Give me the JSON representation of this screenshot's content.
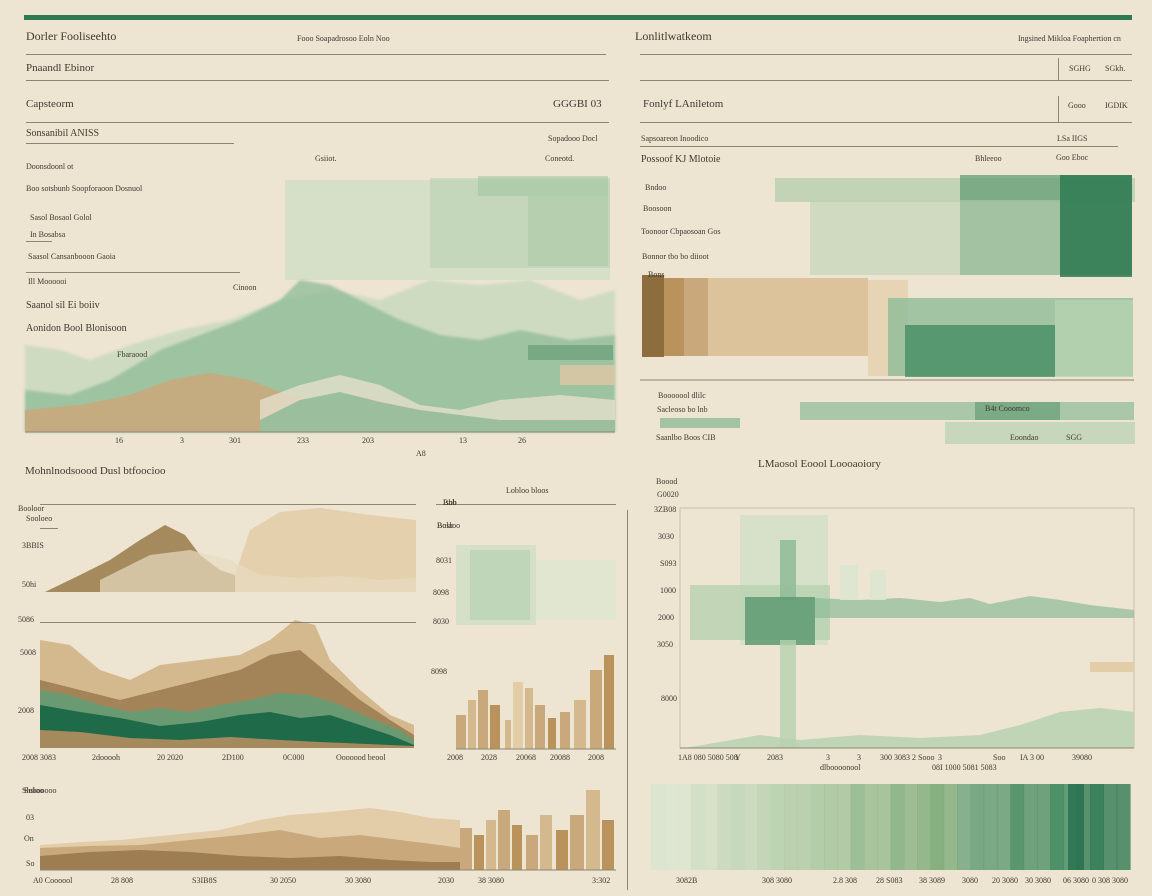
{
  "colors": {
    "background": "#ede4d2",
    "accent_green": "#2f7a52",
    "mid_green": "#7fb08a",
    "pale_green": "#b9d2b2",
    "dark_green": "#1f6a48",
    "tan": "#c8a97b",
    "brown": "#8d6c3e",
    "dark_brown": "#6a5128",
    "ink": "#3e3a2e"
  },
  "left_panel": {
    "title": "Dorler Fooliseehto",
    "title_note": "Fooo Soapadrosoo Eoln Noo",
    "row1": "Pnaandl Ebinor",
    "row2_label": "Capsteorm",
    "row2_value": "GGGBI 03",
    "row3_label": "Sonsanibil ANISS",
    "row3_right": "Sopadooo Docl",
    "col_left": "Gsiiot.",
    "col_right": "Coneotd.",
    "side_labels": [
      "Doonsdoonl ot",
      "Boo sotsbunb Soopforaoon Dosnuol",
      "Sasol Bosaol Golol",
      "In Bosabsa",
      "Saasol Cansanbooon Gaoia",
      "Ill Moooooi",
      "Saanol sil Ei boiiv",
      "Aonidon Bool Blonisoon"
    ],
    "chart_notes": [
      "Cinoon",
      "Fbaraood"
    ]
  },
  "right_panel": {
    "title": "Lonlitlwatkeom",
    "title_note": "Ingsined Mikloa Foaphertion cn",
    "row1_right": [
      "SGHG",
      "SGkh."
    ],
    "row2_label": "Fonlyf LAniletom",
    "row2_right": [
      "Gooo",
      "IGDIK"
    ],
    "row3_label": "Sapsoareon Inoodico",
    "row3_right": "LSa IIGS",
    "row4_label": "Possoof KJ Mlotoie",
    "row4_mid": "Bhleeoo",
    "row4_right": "Goo Eboc",
    "side_labels": [
      "Bndoo",
      "Boosoon",
      "Toonoor Cbpaosoan Gos",
      "Bonnor tbo bo diioot",
      "Bons"
    ],
    "lower_labels": [
      "Booooool dlilc",
      "Sacleoso bo lnb",
      "Saanlbo Boos CIB"
    ],
    "lower_right": [
      "B4t Cooomco",
      "Eoondao",
      "SGG"
    ]
  },
  "bottom_left": {
    "title": "Mohnlnodsoood Dusl btfoocioo",
    "legend_top": [
      "Booloor",
      "Sooloeo"
    ],
    "note": "Sobooooo"
  },
  "bottom_mid": {
    "title": "Lobloo bloos",
    "small_labels": [
      "Bhb",
      "Bolaoo"
    ]
  },
  "bottom_right": {
    "title": "LMaosol Eoool Loooaoiory"
  },
  "chart_data": [
    {
      "type": "area",
      "x_ticks": [
        "16",
        "3",
        "301",
        "233",
        "203",
        "13",
        "26"
      ],
      "xlabel": "A8"
    },
    {
      "type": "bar",
      "y_ticks": [
        "Isob",
        "Bosb",
        "8031",
        "8098",
        "8030",
        "8098"
      ],
      "x_ticks": [
        "2008",
        "2028",
        "20068",
        "20088",
        "2008"
      ]
    },
    {
      "type": "area",
      "y_ticks": [
        "3BBIS",
        "50hi",
        "5086",
        "5008",
        "2008"
      ],
      "x_ticks": [
        "2008 3083",
        "2dooooh",
        "20 2020",
        "2D100",
        "0C000",
        "Ooooood beool"
      ]
    },
    {
      "type": "line",
      "y_ticks": [
        "Boood",
        "G0020",
        "3ZB08",
        "3030",
        "S093",
        "1000",
        "2000",
        "3050",
        "8000"
      ],
      "x_ticks": [
        "1A8 080 5080 508",
        "Y",
        "2083",
        "3",
        "dlboooonool",
        "3",
        "300 3083 2 Sooo",
        "3 ",
        "08I 1000 5081 5083",
        "Soo",
        "IA 3 00",
        "39080"
      ]
    },
    {
      "type": "area",
      "y_ticks": [
        "Sbsioo",
        "03",
        "On",
        "So"
      ],
      "x_ticks": [
        "A0 Coooool",
        "28 808",
        "S3IB8S",
        "30 2050",
        "30 3080",
        "2030",
        "38 3080",
        "3:302"
      ]
    },
    {
      "type": "heatmap",
      "x_ticks": [
        "3082B",
        "308 3080",
        "2.8 308",
        "28 S083",
        "38 3089",
        "3080",
        "20 3080",
        "30 3080",
        "06 3080",
        "0 308 3080"
      ]
    }
  ]
}
